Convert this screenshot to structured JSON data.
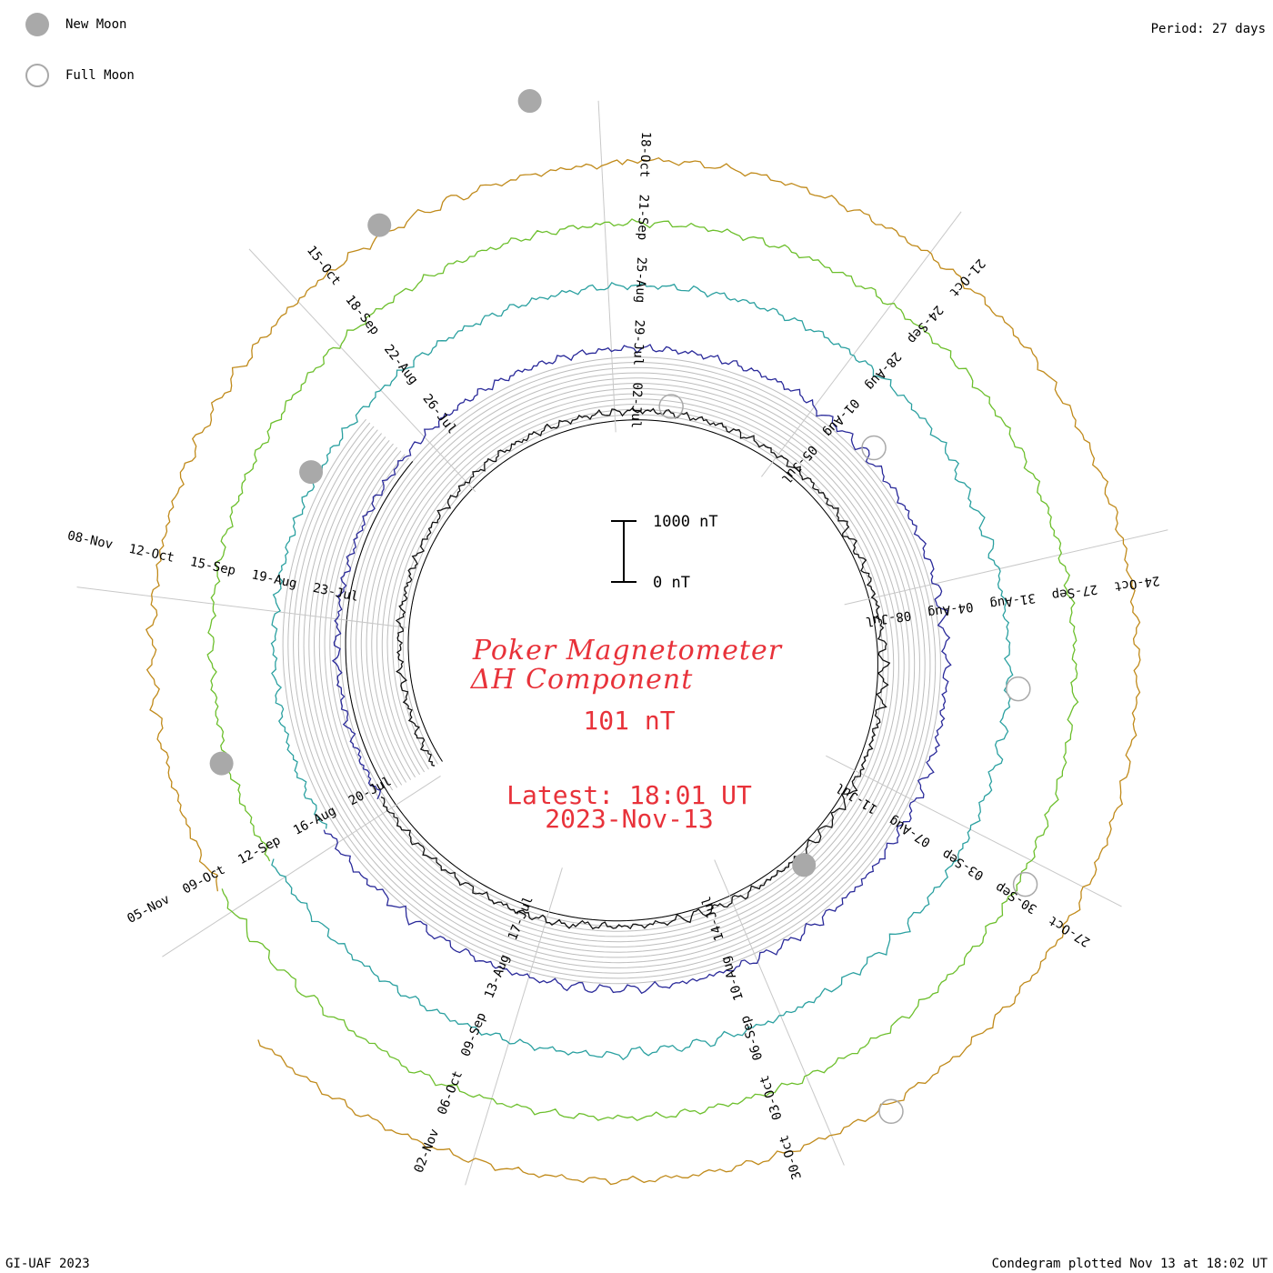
{
  "chart_data": {
    "type": "condegram",
    "title": "Poker Magnetometer",
    "subtitle": "ΔH Component",
    "value_label": "101 nT",
    "latest_label": "Latest: 18:01 UT",
    "date_label": "2023-Nov-13",
    "period_label": "Period: 27 days",
    "scale_bar": {
      "top_label": "1000 nT",
      "bottom_label": "0 nT",
      "nT_range": [
        0,
        1000
      ]
    },
    "credit": "GI-UAF 2023",
    "footer": "Condegram plotted Nov 13 at 18:02 UT",
    "legend": [
      {
        "label": "New Moon",
        "symbol": "filled-circle",
        "color": "#a9a9a9"
      },
      {
        "label": "Full Moon",
        "symbol": "open-circle",
        "color": "#a9a9a9"
      }
    ],
    "rotations": [
      {
        "index": 0,
        "color": "#111111",
        "labels": [
          "02-Jul",
          "05-Jul",
          "08-Jul",
          "11-Jul",
          "14-Jul",
          "17-Jul",
          "20-Jul",
          "23-Jul",
          "26-Jul"
        ]
      },
      {
        "index": 1,
        "color": "#2a2a9a",
        "labels": [
          "29-Jul",
          "01-Aug",
          "04-Aug",
          "07-Aug",
          "10-Aug",
          "13-Aug",
          "16-Aug",
          "19-Aug",
          "22-Aug"
        ]
      },
      {
        "index": 2,
        "color": "#2aa0a0",
        "labels": [
          "25-Aug",
          "28-Aug",
          "31-Aug",
          "03-Sep",
          "06-Sep",
          "09-Sep",
          "12-Sep",
          "15-Sep",
          "18-Sep"
        ]
      },
      {
        "index": 3,
        "color": "#6cbf2c",
        "labels": [
          "21-Sep",
          "24-Sep",
          "27-Sep",
          "30-Sep",
          "03-Oct",
          "06-Oct",
          "09-Oct",
          "12-Oct",
          "15-Oct"
        ]
      },
      {
        "index": 4,
        "color": "#c08a1a",
        "labels": [
          "18-Oct",
          "21-Oct",
          "24-Oct",
          "27-Oct",
          "30-Oct",
          "02-Nov",
          "05-Nov",
          "08-Nov"
        ]
      }
    ],
    "new_moons": [
      "17-Jul",
      "16-Aug",
      "15-Sep",
      "15-Oct",
      "13-Nov"
    ],
    "full_moons": [
      "03-Jul",
      "01-Aug",
      "31-Aug",
      "29-Sep",
      "28-Oct"
    ]
  }
}
